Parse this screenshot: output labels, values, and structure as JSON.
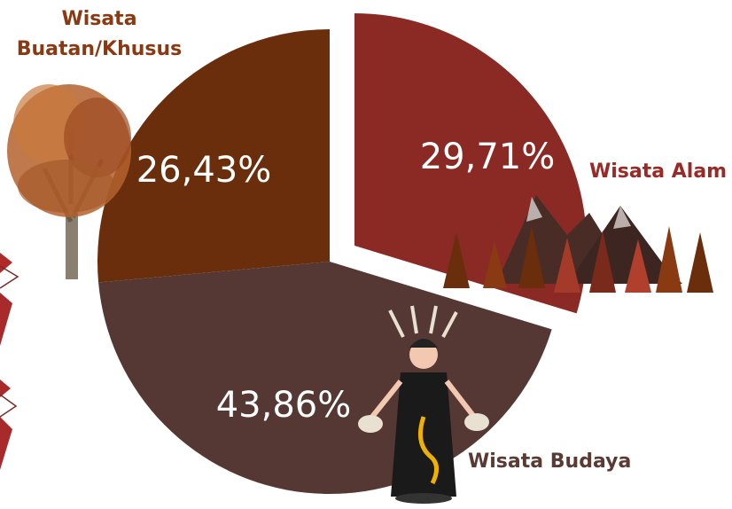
{
  "chart_data": {
    "type": "pie",
    "exploded": true,
    "slices": [
      {
        "category": "Wisata Alam",
        "value": 29.71,
        "label": "29,71%",
        "color": "#8b2a24",
        "label_color": "#9a2a25"
      },
      {
        "category": "Wisata Budaya",
        "value": 43.86,
        "label": "43,86%",
        "color": "#553833",
        "label_color": "#5a3a33"
      },
      {
        "category": "Wisata Buatan/Khusus",
        "value": 26.43,
        "label": "26,43%",
        "color": "#6b2e0d",
        "label_color": "#8a3a12"
      }
    ],
    "category_labels": {
      "alam": "Wisata Alam",
      "budaya": "Wisata Budaya",
      "buatan_line1": "Wisata",
      "buatan_line2": "Buatan/Khusus"
    },
    "legend": "none",
    "decorations": [
      "tree-illustration",
      "mountain-forest-illustration",
      "dayak-dancer-illustration",
      "arrow-shapes"
    ]
  }
}
